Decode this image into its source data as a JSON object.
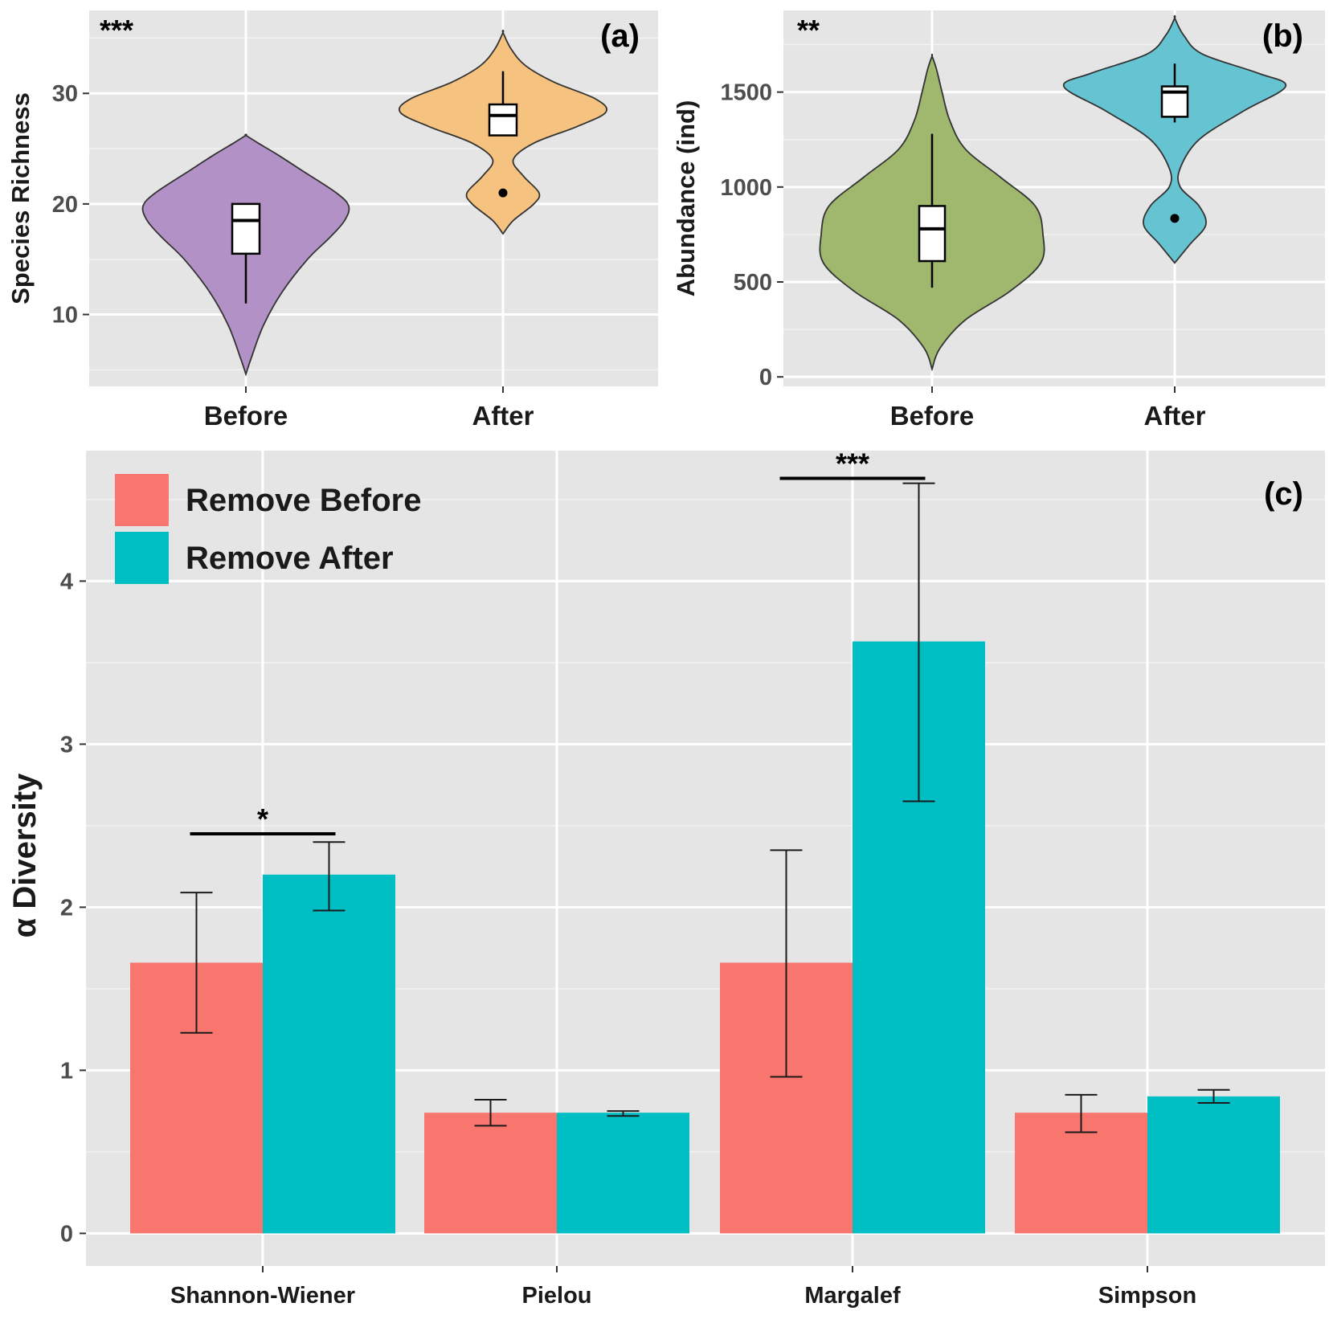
{
  "chart_data": [
    {
      "id": "a",
      "type": "violin",
      "panel_label": "(a)",
      "significance": "***",
      "ylabel": "Species Richness",
      "categories": [
        "Before",
        "After"
      ],
      "yticks": [
        10,
        20,
        30
      ],
      "ylim": [
        3.5,
        37.5
      ],
      "colors": [
        "#b291c6",
        "#f5c27f"
      ],
      "series": [
        {
          "category": "Before",
          "color": "#b291c6",
          "density_min": 4.6,
          "density_max": 26.2,
          "box": {
            "q1": 15.5,
            "median": 18.5,
            "q3": 20,
            "whisker_low": 11,
            "whisker_high": 20
          },
          "outliers": [],
          "profile": [
            [
              4.6,
              0
            ],
            [
              6,
              0.05
            ],
            [
              9,
              0.17
            ],
            [
              12,
              0.35
            ],
            [
              15,
              0.6
            ],
            [
              17,
              0.82
            ],
            [
              18.5,
              0.96
            ],
            [
              19.8,
              1
            ],
            [
              21,
              0.88
            ],
            [
              23,
              0.55
            ],
            [
              24.5,
              0.3
            ],
            [
              25.5,
              0.12
            ],
            [
              26.2,
              0
            ]
          ]
        },
        {
          "category": "After",
          "color": "#f5c27f",
          "density_min": 17.3,
          "density_max": 35.5,
          "box": {
            "q1": 26.2,
            "median": 28,
            "q3": 29,
            "whisker_low": 26.2,
            "whisker_high": 32
          },
          "outliers": [
            21
          ],
          "profile": [
            [
              17.3,
              0
            ],
            [
              18.5,
              0.1
            ],
            [
              20,
              0.3
            ],
            [
              21,
              0.35
            ],
            [
              22.5,
              0.2
            ],
            [
              24,
              0.1
            ],
            [
              25.5,
              0.3
            ],
            [
              27,
              0.72
            ],
            [
              28.3,
              1
            ],
            [
              29.5,
              0.9
            ],
            [
              31,
              0.5
            ],
            [
              32.5,
              0.22
            ],
            [
              34,
              0.08
            ],
            [
              35.5,
              0
            ]
          ]
        }
      ]
    },
    {
      "id": "b",
      "type": "violin",
      "panel_label": "(b)",
      "significance": "**",
      "ylabel": "Abundance (ind)",
      "categories": [
        "Before",
        "After"
      ],
      "yticks": [
        0,
        500,
        1000,
        1500
      ],
      "ylim": [
        -50,
        1930
      ],
      "colors": [
        "#9fb86e",
        "#66c3d1"
      ],
      "series": [
        {
          "category": "Before",
          "color": "#9fb86e",
          "density_min": 40,
          "density_max": 1690,
          "box": {
            "q1": 610,
            "median": 780,
            "q3": 900,
            "whisker_low": 470,
            "whisker_high": 1280
          },
          "outliers": [],
          "profile": [
            [
              40,
              0
            ],
            [
              150,
              0.07
            ],
            [
              300,
              0.3
            ],
            [
              450,
              0.7
            ],
            [
              600,
              0.98
            ],
            [
              750,
              1
            ],
            [
              900,
              0.93
            ],
            [
              1050,
              0.62
            ],
            [
              1200,
              0.3
            ],
            [
              1350,
              0.16
            ],
            [
              1500,
              0.09
            ],
            [
              1620,
              0.04
            ],
            [
              1690,
              0
            ]
          ]
        },
        {
          "category": "After",
          "color": "#66c3d1",
          "density_min": 600,
          "density_max": 1890,
          "box": {
            "q1": 1370,
            "median": 1500,
            "q3": 1530,
            "whisker_low": 1340,
            "whisker_high": 1650
          },
          "outliers": [
            835
          ],
          "profile": [
            [
              600,
              0
            ],
            [
              700,
              0.14
            ],
            [
              800,
              0.28
            ],
            [
              900,
              0.22
            ],
            [
              1000,
              0.05
            ],
            [
              1100,
              0.05
            ],
            [
              1250,
              0.22
            ],
            [
              1400,
              0.62
            ],
            [
              1530,
              1
            ],
            [
              1600,
              0.75
            ],
            [
              1700,
              0.25
            ],
            [
              1800,
              0.08
            ],
            [
              1890,
              0
            ]
          ]
        }
      ]
    },
    {
      "id": "c",
      "type": "bar",
      "panel_label": "(c)",
      "ylabel": "α Diversity",
      "categories": [
        "Shannon-Wiener",
        "Pielou",
        "Margalef",
        "Simpson"
      ],
      "yticks": [
        0,
        1,
        2,
        3,
        4
      ],
      "ylim": [
        -0.2,
        4.8
      ],
      "series": [
        {
          "name": "Remove Before",
          "color": "#f8766d",
          "values": [
            1.66,
            0.74,
            1.66,
            0.74
          ],
          "error_low": [
            1.23,
            0.66,
            0.96,
            0.62
          ],
          "error_high": [
            2.09,
            0.82,
            2.35,
            0.85
          ]
        },
        {
          "name": "Remove After",
          "color": "#00bfc4",
          "values": [
            2.2,
            0.74,
            3.63,
            0.84
          ],
          "error_low": [
            1.98,
            0.72,
            2.65,
            0.8
          ],
          "error_high": [
            2.4,
            0.75,
            4.6,
            0.88
          ]
        }
      ],
      "significance": [
        {
          "category": "Shannon-Wiener",
          "label": "*",
          "y": 2.45
        },
        {
          "category": "Margalef",
          "label": "***",
          "y": 4.63
        }
      ],
      "legend": {
        "position": "top-left",
        "entries": [
          "Remove Before",
          "Remove After"
        ]
      }
    }
  ]
}
